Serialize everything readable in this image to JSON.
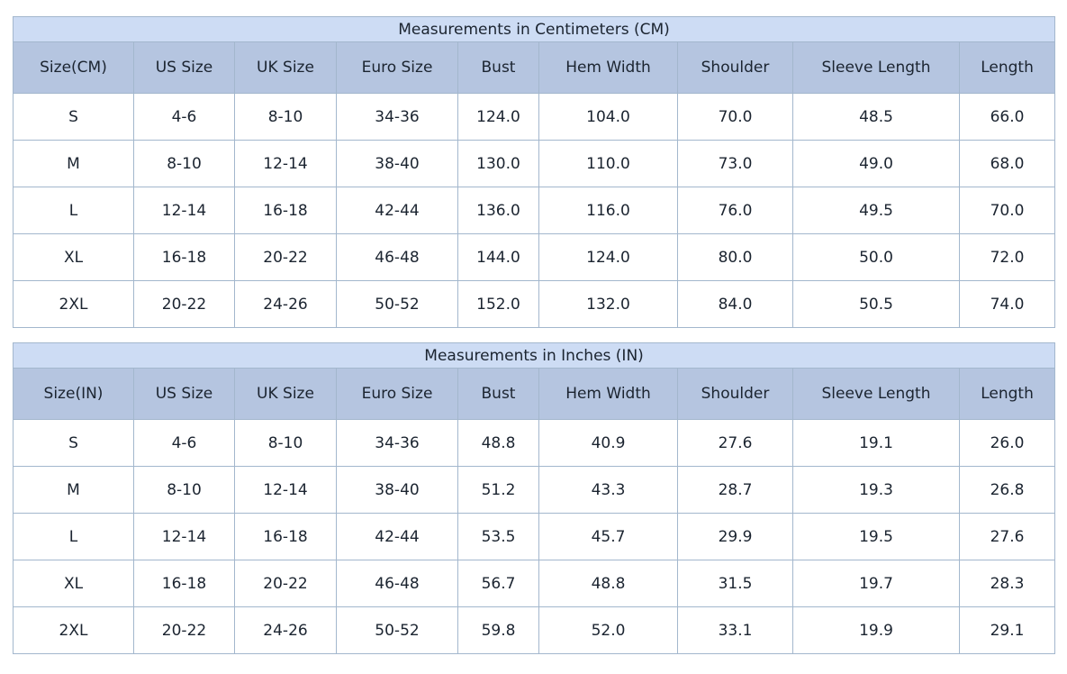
{
  "colors": {
    "title_bg": "#cddcf4",
    "header_bg": "#b5c5e0",
    "border": "#a3b7cd",
    "text": "#1b2430",
    "row_bg": "#ffffff"
  },
  "chart_data": [
    {
      "type": "table",
      "title": "Measurements in Centimeters (CM)",
      "columns": [
        "Size(CM)",
        "US Size",
        "UK Size",
        "Euro Size",
        "Bust",
        "Hem Width",
        "Shoulder",
        "Sleeve Length",
        "Length"
      ],
      "rows": [
        [
          "S",
          "4-6",
          "8-10",
          "34-36",
          "124.0",
          "104.0",
          "70.0",
          "48.5",
          "66.0"
        ],
        [
          "M",
          "8-10",
          "12-14",
          "38-40",
          "130.0",
          "110.0",
          "73.0",
          "49.0",
          "68.0"
        ],
        [
          "L",
          "12-14",
          "16-18",
          "42-44",
          "136.0",
          "116.0",
          "76.0",
          "49.5",
          "70.0"
        ],
        [
          "XL",
          "16-18",
          "20-22",
          "46-48",
          "144.0",
          "124.0",
          "80.0",
          "50.0",
          "72.0"
        ],
        [
          "2XL",
          "20-22",
          "24-26",
          "50-52",
          "152.0",
          "132.0",
          "84.0",
          "50.5",
          "74.0"
        ]
      ]
    },
    {
      "type": "table",
      "title": "Measurements in Inches (IN)",
      "columns": [
        "Size(IN)",
        "US Size",
        "UK Size",
        "Euro Size",
        "Bust",
        "Hem Width",
        "Shoulder",
        "Sleeve Length",
        "Length"
      ],
      "rows": [
        [
          "S",
          "4-6",
          "8-10",
          "34-36",
          "48.8",
          "40.9",
          "27.6",
          "19.1",
          "26.0"
        ],
        [
          "M",
          "8-10",
          "12-14",
          "38-40",
          "51.2",
          "43.3",
          "28.7",
          "19.3",
          "26.8"
        ],
        [
          "L",
          "12-14",
          "16-18",
          "42-44",
          "53.5",
          "45.7",
          "29.9",
          "19.5",
          "27.6"
        ],
        [
          "XL",
          "16-18",
          "20-22",
          "46-48",
          "56.7",
          "48.8",
          "31.5",
          "19.7",
          "28.3"
        ],
        [
          "2XL",
          "20-22",
          "24-26",
          "50-52",
          "59.8",
          "52.0",
          "33.1",
          "19.9",
          "29.1"
        ]
      ]
    }
  ]
}
